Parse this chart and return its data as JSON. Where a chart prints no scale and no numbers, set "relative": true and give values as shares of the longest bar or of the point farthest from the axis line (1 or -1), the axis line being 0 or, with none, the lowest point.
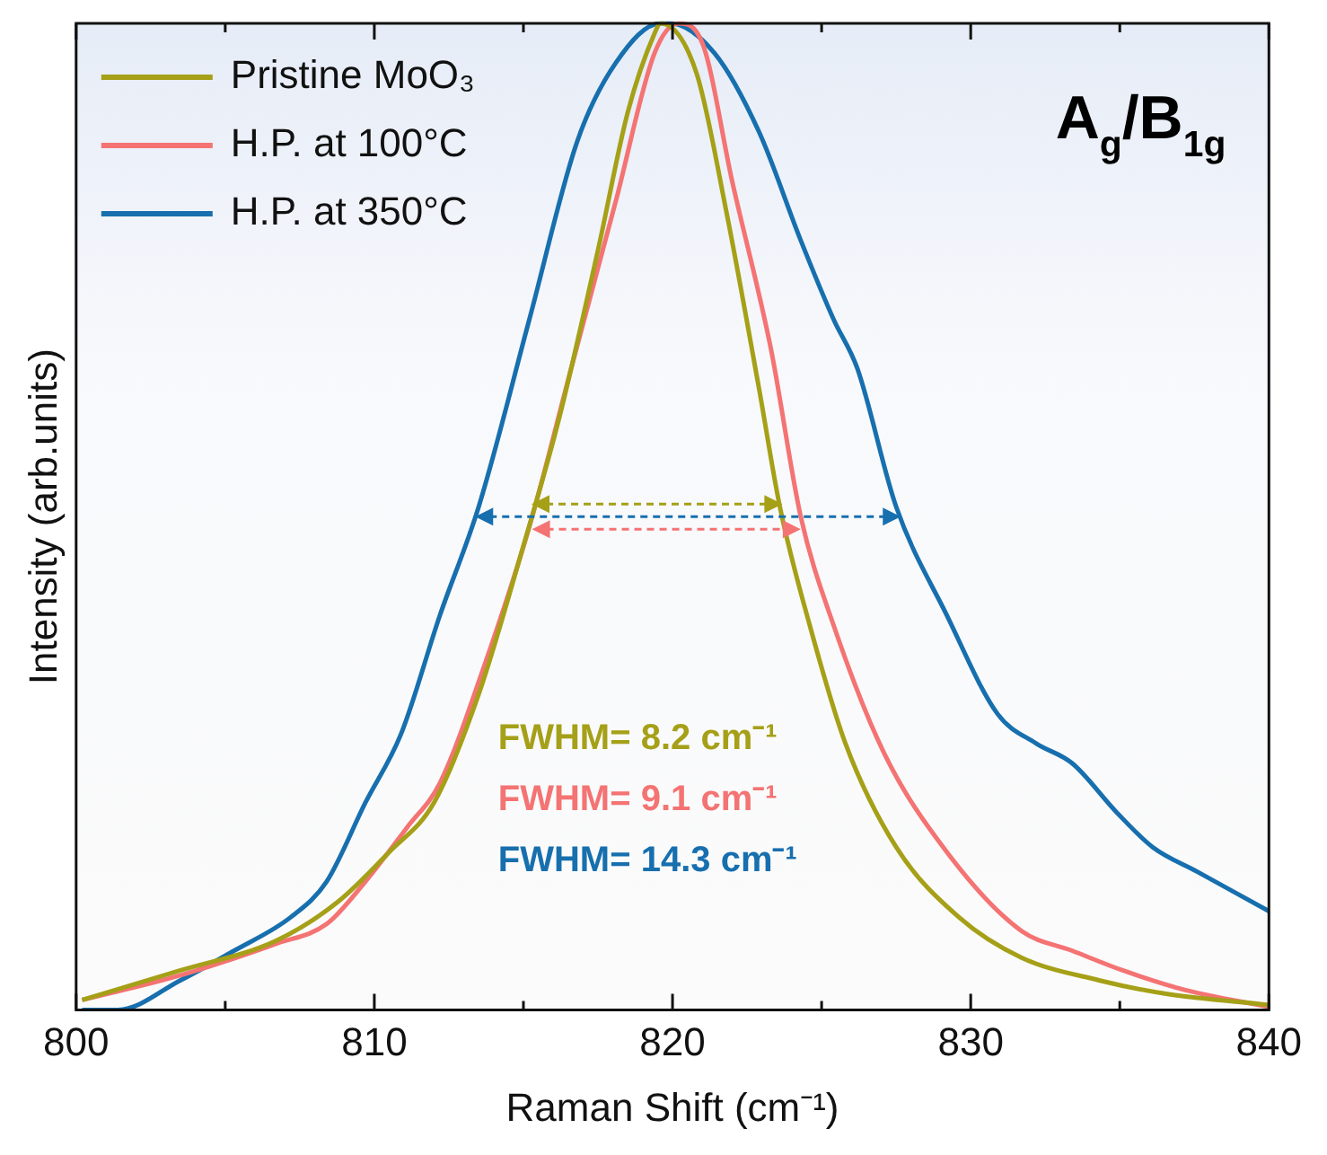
{
  "chart_data": {
    "type": "line",
    "relative": true,
    "xlabel": "Raman Shift (cm⁻¹)",
    "ylabel": "Intensity (arb.units)",
    "xlim": [
      800,
      840
    ],
    "xticks": [
      800,
      {
        "value": 805,
        "label": null
      },
      810,
      {
        "value": 815,
        "label": null
      },
      820,
      {
        "value": 825,
        "label": null
      },
      830,
      {
        "value": 835,
        "label": null
      },
      840
    ],
    "legend": "top left",
    "grid": false,
    "marker": "none",
    "line_style": "solid",
    "annotations": [
      "A$_{g}$/B$_{1g}$",
      "FWHM= 8.2 cm⁻¹",
      "FWHM= 9.1 cm⁻¹",
      "FWHM= 14.3 cm⁻¹"
    ],
    "series": [
      {
        "name": "Pristine MoO₃",
        "color": "#a5a017",
        "x": [
          800.2,
          803.5,
          806.7,
          808.8,
          810.5,
          812,
          813.5,
          814.9,
          816.2,
          817.5,
          818.5,
          819.4,
          819.6,
          820.8,
          821.8,
          822.9,
          823.6,
          824.6,
          825.8,
          827.5,
          829.6,
          831.7,
          834.3,
          836.6,
          840
        ],
        "values": [
          0.01,
          0.04,
          0.07,
          0.11,
          0.16,
          0.21,
          0.32,
          0.46,
          0.6,
          0.77,
          0.91,
          0.99,
          1,
          0.95,
          0.81,
          0.63,
          0.51,
          0.39,
          0.27,
          0.165,
          0.094,
          0.053,
          0.03,
          0.016,
          0.005
        ]
      },
      {
        "name": "H.P. at 100°C",
        "color": "#f47373",
        "x": [
          800.2,
          803.5,
          806.7,
          808.4,
          809.7,
          811.1,
          812.2,
          813.7,
          815.2,
          816.6,
          818.1,
          819.4,
          820.2,
          821,
          822,
          823.3,
          824.3,
          825.4,
          827.1,
          829.2,
          831.7,
          833.4,
          835.1,
          837.2,
          840
        ],
        "values": [
          0.01,
          0.035,
          0.067,
          0.087,
          0.13,
          0.185,
          0.23,
          0.35,
          0.49,
          0.65,
          0.82,
          0.97,
          1,
          0.98,
          0.84,
          0.67,
          0.5,
          0.39,
          0.26,
          0.16,
          0.08,
          0.06,
          0.04,
          0.02,
          0.003
        ]
      },
      {
        "name": "H.P. at 350°C",
        "color": "#176fae",
        "x": [
          800.2,
          801.4,
          803.5,
          805.3,
          807.2,
          808.4,
          809.7,
          810.9,
          812.2,
          813.5,
          815.2,
          816.8,
          818.1,
          819.6,
          819.9,
          821.4,
          822.9,
          824.3,
          825.4,
          826.2,
          827.5,
          829.2,
          830.9,
          832.2,
          833.4,
          834.9,
          836.1,
          837.6,
          840
        ],
        "values": [
          0,
          0,
          0.03,
          0.06,
          0.094,
          0.13,
          0.21,
          0.28,
          0.4,
          0.51,
          0.7,
          0.88,
          0.96,
          1,
          1,
          0.97,
          0.89,
          0.78,
          0.7,
          0.65,
          0.51,
          0.4,
          0.3,
          0.27,
          0.25,
          0.2,
          0.165,
          0.14,
          0.1
        ]
      }
    ]
  }
}
